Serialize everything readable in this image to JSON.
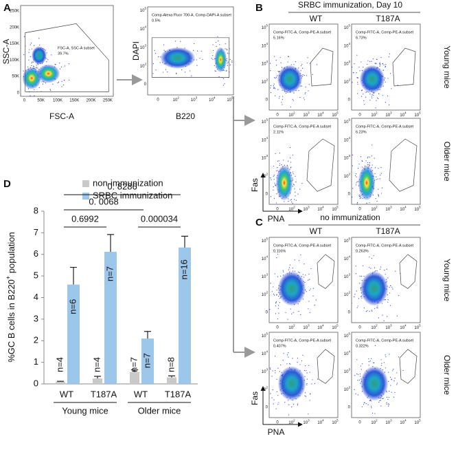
{
  "panels": {
    "A": {
      "label": "A",
      "plot1": {
        "ylabel": "SSC-A",
        "xlabel": "FSC-A",
        "ticks": [
          "0",
          "50K",
          "100K",
          "150K",
          "200K",
          "250K"
        ],
        "gate_name": "FSC-A, SSC-A subset",
        "gate_pct": "39.7%"
      },
      "plot2": {
        "ylabel": "DAPI",
        "xlabel": "B220",
        "gate_name": "Comp-Alexa Fluor 700-A, Comp-DAPI-A subset",
        "gate_pct": "0.5%"
      }
    },
    "B": {
      "label": "B",
      "title": "SRBC immunization, Day 10",
      "columns": [
        "WT",
        "T187A"
      ],
      "rows": [
        "Young mice",
        "Older mice"
      ],
      "ylabel": "Fas",
      "xlabel": "PNA",
      "gate_name": "Comp-FITC-A, Comp-PE-A subset",
      "gate_pcts": [
        [
          "5.16%",
          "6.73%"
        ],
        [
          "2.11%",
          "6.23%"
        ]
      ]
    },
    "C": {
      "label": "C",
      "title": "no immunization",
      "columns": [
        "WT",
        "T187A"
      ],
      "rows": [
        "Young mice",
        "Older mice"
      ],
      "ylabel": "Fas",
      "xlabel": "PNA",
      "gate_name": "Comp-FITC-A, Comp-PE-A subset",
      "gate_pcts": [
        [
          "0.116%",
          "0.263%"
        ],
        [
          "0.407%",
          "0.322%"
        ]
      ]
    },
    "D": {
      "label": "D"
    }
  },
  "log_ticks": {
    "zero": "0",
    "base": "10",
    "exponents": [
      "2",
      "3",
      "4",
      "5"
    ]
  },
  "chart_data": {
    "type": "bar",
    "ylabel": [
      "%GC B cells in B220",
      "+",
      " population"
    ],
    "categories": [
      "WT",
      "T187A",
      "WT",
      "T187A"
    ],
    "groups": [
      "Young mice",
      "Older mice"
    ],
    "series": [
      {
        "name": "non-immunization",
        "color": "#c9c9c9",
        "values": [
          0.1,
          0.25,
          0.55,
          0.3
        ],
        "errors": [
          0.02,
          0.1,
          0.1,
          0.07
        ],
        "n_labels": [
          "n=4",
          "n=4",
          "n=7",
          "n=8"
        ]
      },
      {
        "name": "SRBC immunization",
        "color": "#9dc7ea",
        "values": [
          4.6,
          6.12,
          2.1,
          6.32
        ],
        "errors": [
          0.8,
          0.8,
          0.33,
          0.52
        ],
        "n_labels": [
          "n=6",
          "n=7",
          "n=7",
          "n=16"
        ]
      }
    ],
    "p_values": [
      "0.6992",
      "0.000034",
      "0. 0068",
      "0. 8286"
    ],
    "ylim": [
      0,
      8
    ],
    "yticks": [
      0,
      1,
      2,
      3,
      4,
      5,
      6,
      7,
      8
    ]
  }
}
